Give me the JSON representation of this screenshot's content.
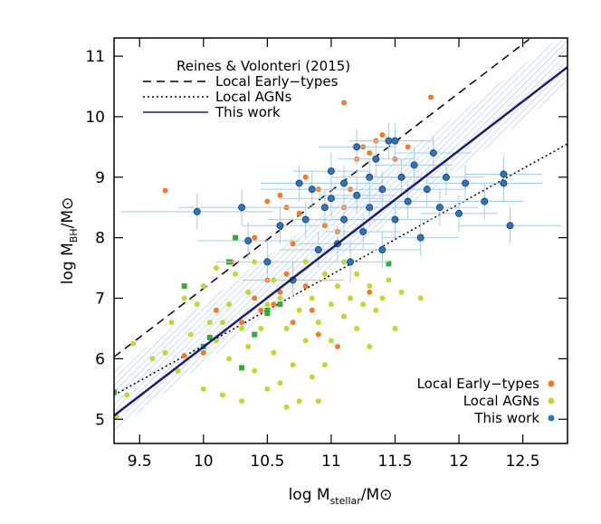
{
  "chart_data": {
    "type": "scatter",
    "xlabel": {
      "text": "log M",
      "sub": "stellar",
      "tail": "/M⊙"
    },
    "ylabel": {
      "text": "log M",
      "sub": "BH",
      "tail": "/M⊙"
    },
    "xlim": [
      9.3,
      12.85
    ],
    "ylim": [
      4.6,
      11.3
    ],
    "xticks": [
      9.5,
      10.0,
      10.5,
      11.0,
      11.5,
      12.0,
      12.5
    ],
    "yticks": [
      5,
      6,
      7,
      8,
      9,
      10,
      11
    ],
    "legend_title": "Reines & Volonteri (2015)",
    "lines_legend": "upper left",
    "series_legend": "lower right",
    "band": {
      "color": "#a9c8ea",
      "x": [
        9.3,
        12.85
      ],
      "lower": [
        4.8,
        10.5
      ],
      "upper": [
        5.8,
        11.4
      ]
    },
    "lines": [
      {
        "name": "Local Early−types",
        "style": "dashed",
        "color": "#000000",
        "x": [
          9.3,
          12.55
        ],
        "y": [
          6.03,
          11.28
        ]
      },
      {
        "name": "Local AGNs",
        "style": "dotted",
        "color": "#000000",
        "x": [
          9.3,
          12.85
        ],
        "y": [
          5.4,
          9.55
        ]
      },
      {
        "name": "This work",
        "style": "solid",
        "color": "#1c1c6b",
        "x": [
          9.3,
          12.85
        ],
        "y": [
          5.06,
          10.82
        ]
      }
    ],
    "series": [
      {
        "name": "Local Early−types",
        "color": "#f07a2e",
        "marker": "circle",
        "x": [
          9.7,
          10.22,
          10.5,
          10.6,
          10.75,
          10.8,
          10.9,
          11.0,
          11.1,
          11.2,
          11.25,
          11.3,
          11.35,
          11.4,
          11.5,
          11.6,
          11.78,
          11.1,
          10.95,
          10.7,
          10.4,
          10.5,
          10.55,
          10.6,
          10.65,
          10.8,
          10.85,
          10.9,
          11.05,
          10.3,
          10.1,
          10.0,
          9.85,
          10.7,
          11.3,
          10.45,
          11.15,
          11.05,
          10.65,
          10.4
        ],
        "y": [
          8.78,
          7.6,
          8.6,
          8.7,
          8.4,
          9.0,
          8.8,
          9.1,
          10.23,
          9.3,
          9.5,
          9.4,
          9.6,
          9.7,
          9.3,
          9.5,
          10.32,
          8.5,
          8.2,
          7.9,
          7.0,
          7.3,
          6.9,
          7.1,
          7.4,
          7.2,
          6.8,
          6.4,
          6.2,
          6.6,
          6.8,
          6.1,
          6.05,
          6.6,
          7.1,
          6.8,
          8.8,
          8.1,
          8.5,
          8.0
        ]
      },
      {
        "name": "Local AGNs",
        "color": "#bcd934",
        "marker": "circle",
        "x": [
          9.32,
          9.4,
          9.45,
          9.7,
          9.75,
          9.8,
          9.85,
          9.9,
          9.95,
          10.0,
          10.0,
          10.05,
          10.1,
          10.1,
          10.15,
          10.2,
          10.2,
          10.25,
          10.3,
          10.3,
          10.35,
          10.35,
          10.4,
          10.4,
          10.45,
          10.5,
          10.5,
          10.55,
          10.55,
          10.6,
          10.6,
          10.65,
          10.7,
          10.7,
          10.75,
          10.75,
          10.8,
          10.8,
          10.85,
          10.85,
          10.9,
          10.95,
          10.95,
          11.0,
          11.0,
          11.05,
          11.1,
          11.1,
          11.15,
          11.2,
          11.2,
          11.25,
          11.3,
          11.35,
          11.4,
          11.45,
          11.5,
          11.55,
          11.7,
          11.3,
          10.65,
          10.9,
          9.6,
          10.15
        ],
        "y": [
          5.05,
          5.4,
          6.25,
          6.1,
          6.6,
          5.8,
          7.0,
          6.4,
          6.9,
          7.2,
          5.5,
          6.6,
          6.3,
          7.5,
          5.4,
          6.0,
          6.9,
          7.4,
          5.3,
          6.5,
          7.1,
          6.2,
          5.8,
          7.6,
          6.5,
          5.5,
          6.9,
          7.3,
          6.1,
          5.6,
          7.0,
          6.5,
          5.9,
          7.3,
          6.8,
          5.3,
          7.6,
          6.3,
          5.7,
          7.0,
          6.6,
          7.4,
          5.9,
          6.9,
          6.3,
          7.2,
          6.7,
          7.6,
          7.0,
          6.5,
          7.4,
          6.9,
          7.2,
          6.8,
          7.0,
          7.3,
          6.5,
          7.1,
          7.0,
          6.2,
          5.2,
          5.3,
          6.0,
          6.6
        ]
      },
      {
        "color": "#3aa83a",
        "marker": "square",
        "x": [
          9.3,
          9.85,
          10.0,
          10.05,
          10.2,
          10.3,
          10.4,
          10.5,
          10.6,
          10.25,
          10.95,
          11.45,
          10.5
        ],
        "y": [
          5.45,
          7.2,
          6.2,
          6.35,
          7.6,
          5.85,
          6.4,
          6.75,
          6.9,
          8.0,
          8.5,
          7.57,
          6.8
        ]
      },
      {
        "name": "This work",
        "color": "#2e74b8",
        "marker": "circle",
        "errcolor": "#a8cbe8",
        "x": [
          9.95,
          10.3,
          10.35,
          10.5,
          10.6,
          10.7,
          10.8,
          10.85,
          10.9,
          10.95,
          11.0,
          11.05,
          11.1,
          11.1,
          11.15,
          11.2,
          11.25,
          11.3,
          11.3,
          11.35,
          11.4,
          11.4,
          11.45,
          11.5,
          11.55,
          11.6,
          11.65,
          11.7,
          11.75,
          11.8,
          11.85,
          11.9,
          12.0,
          12.05,
          12.2,
          12.35,
          12.35,
          11.2,
          10.75,
          11.0,
          11.5,
          12.4
        ],
        "y": [
          8.43,
          8.5,
          7.95,
          7.6,
          8.2,
          7.3,
          8.3,
          8.8,
          7.8,
          8.5,
          8.65,
          7.9,
          8.9,
          8.3,
          7.6,
          8.7,
          8.1,
          9.0,
          8.5,
          9.3,
          7.8,
          8.8,
          9.6,
          8.3,
          9.0,
          8.6,
          9.2,
          8.0,
          8.8,
          9.4,
          8.5,
          9.0,
          8.4,
          8.9,
          8.6,
          9.05,
          8.9,
          9.5,
          8.9,
          9.1,
          9.6,
          8.2
        ],
        "xerr": [
          0.6,
          0.5,
          0.4,
          0.4,
          0.3,
          0.4,
          0.3,
          0.4,
          0.3,
          0.3,
          0.4,
          0.3,
          0.3,
          0.3,
          0.3,
          0.3,
          0.3,
          0.3,
          0.3,
          0.3,
          0.3,
          0.3,
          0.3,
          0.3,
          0.3,
          0.3,
          0.3,
          0.3,
          0.3,
          0.3,
          0.3,
          0.3,
          0.3,
          0.3,
          0.3,
          0.3,
          0.3,
          0.3,
          0.3,
          0.3,
          0.3,
          0.4
        ],
        "yerr": [
          0.3,
          0.3,
          0.3,
          0.35,
          0.3,
          0.3,
          0.3,
          0.3,
          0.3,
          0.3,
          0.3,
          0.3,
          0.3,
          0.3,
          0.35,
          0.3,
          0.3,
          0.3,
          0.3,
          0.3,
          0.3,
          0.3,
          0.3,
          0.3,
          0.3,
          0.3,
          0.3,
          0.3,
          0.3,
          0.3,
          0.3,
          0.3,
          0.3,
          0.3,
          0.3,
          0.3,
          0.3,
          0.3,
          0.3,
          0.3,
          0.3,
          0.3
        ]
      }
    ]
  }
}
